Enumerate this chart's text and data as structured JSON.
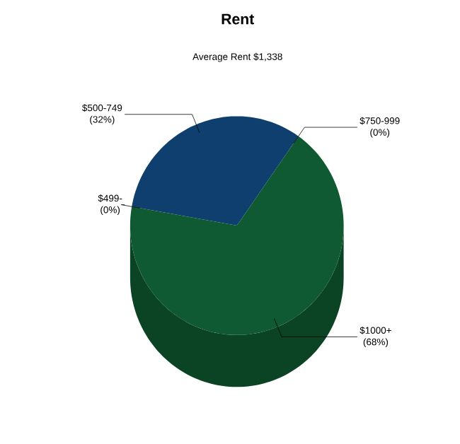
{
  "chart_data": {
    "type": "pie",
    "title": "Rent",
    "subtitle": "Average Rent  $1,338",
    "categories": [
      "$499-",
      "$500-749",
      "$750-999",
      "$1000+"
    ],
    "values": [
      0,
      32,
      0,
      68
    ],
    "value_labels": [
      "(0%)",
      "(32%)",
      "(0%)",
      "(68%)"
    ],
    "colors": [
      "#2e7d4f",
      "#0e3f6e",
      "#5a8fc0",
      "#0f5a32"
    ],
    "legend": false
  }
}
